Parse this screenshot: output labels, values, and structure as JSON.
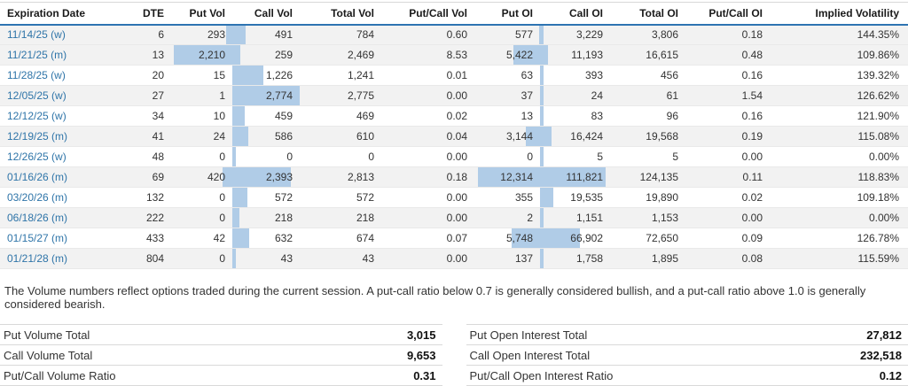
{
  "accent": {
    "bar_color": "#b0cce7",
    "link_color": "#2e74a8",
    "header_underline_color": "#2e74b2"
  },
  "table": {
    "columns": [
      "Expiration Date",
      "DTE",
      "Put Vol",
      "Call Vol",
      "Total Vol",
      "Put/Call Vol",
      "Put OI",
      "Call OI",
      "Total OI",
      "Put/Call OI",
      "Implied Volatility"
    ],
    "rows": [
      {
        "date": "11/14/25 (w)",
        "dte": "6",
        "put_vol": "293",
        "call_vol": "491",
        "total_vol": "784",
        "pc_vol": "0.60",
        "put_oi": "577",
        "call_oi": "3,229",
        "total_oi": "3,806",
        "pc_oi": "0.18",
        "iv": "144.35%"
      },
      {
        "date": "11/21/25 (m)",
        "dte": "13",
        "put_vol": "2,210",
        "call_vol": "259",
        "total_vol": "2,469",
        "pc_vol": "8.53",
        "put_oi": "5,422",
        "call_oi": "11,193",
        "total_oi": "16,615",
        "pc_oi": "0.48",
        "iv": "109.86%"
      },
      {
        "date": "11/28/25 (w)",
        "dte": "20",
        "put_vol": "15",
        "call_vol": "1,226",
        "total_vol": "1,241",
        "pc_vol": "0.01",
        "put_oi": "63",
        "call_oi": "393",
        "total_oi": "456",
        "pc_oi": "0.16",
        "iv": "139.32%"
      },
      {
        "date": "12/05/25 (w)",
        "dte": "27",
        "put_vol": "1",
        "call_vol": "2,774",
        "total_vol": "2,775",
        "pc_vol": "0.00",
        "put_oi": "37",
        "call_oi": "24",
        "total_oi": "61",
        "pc_oi": "1.54",
        "iv": "126.62%"
      },
      {
        "date": "12/12/25 (w)",
        "dte": "34",
        "put_vol": "10",
        "call_vol": "459",
        "total_vol": "469",
        "pc_vol": "0.02",
        "put_oi": "13",
        "call_oi": "83",
        "total_oi": "96",
        "pc_oi": "0.16",
        "iv": "121.90%"
      },
      {
        "date": "12/19/25 (m)",
        "dte": "41",
        "put_vol": "24",
        "call_vol": "586",
        "total_vol": "610",
        "pc_vol": "0.04",
        "put_oi": "3,144",
        "call_oi": "16,424",
        "total_oi": "19,568",
        "pc_oi": "0.19",
        "iv": "115.08%"
      },
      {
        "date": "12/26/25 (w)",
        "dte": "48",
        "put_vol": "0",
        "call_vol": "0",
        "total_vol": "0",
        "pc_vol": "0.00",
        "put_oi": "0",
        "call_oi": "5",
        "total_oi": "5",
        "pc_oi": "0.00",
        "iv": "0.00%"
      },
      {
        "date": "01/16/26 (m)",
        "dte": "69",
        "put_vol": "420",
        "call_vol": "2,393",
        "total_vol": "2,813",
        "pc_vol": "0.18",
        "put_oi": "12,314",
        "call_oi": "111,821",
        "total_oi": "124,135",
        "pc_oi": "0.11",
        "iv": "118.83%"
      },
      {
        "date": "03/20/26 (m)",
        "dte": "132",
        "put_vol": "0",
        "call_vol": "572",
        "total_vol": "572",
        "pc_vol": "0.00",
        "put_oi": "355",
        "call_oi": "19,535",
        "total_oi": "19,890",
        "pc_oi": "0.02",
        "iv": "109.18%"
      },
      {
        "date": "06/18/26 (m)",
        "dte": "222",
        "put_vol": "0",
        "call_vol": "218",
        "total_vol": "218",
        "pc_vol": "0.00",
        "put_oi": "2",
        "call_oi": "1,151",
        "total_oi": "1,153",
        "pc_oi": "0.00",
        "iv": "0.00%"
      },
      {
        "date": "01/15/27 (m)",
        "dte": "433",
        "put_vol": "42",
        "call_vol": "632",
        "total_vol": "674",
        "pc_vol": "0.07",
        "put_oi": "5,748",
        "call_oi": "66,902",
        "total_oi": "72,650",
        "pc_oi": "0.09",
        "iv": "126.78%"
      },
      {
        "date": "01/21/28 (m)",
        "dte": "804",
        "put_vol": "0",
        "call_vol": "43",
        "total_vol": "43",
        "pc_vol": "0.00",
        "put_oi": "137",
        "call_oi": "1,758",
        "total_oi": "1,895",
        "pc_oi": "0.08",
        "iv": "115.59%"
      }
    ]
  },
  "note": "The Volume numbers reflect options traded during the current session. A put-call ratio below 0.7 is generally considered bullish, and a put-call ratio above 1.0 is generally considered bearish.",
  "totals": {
    "volume": {
      "rows": [
        {
          "label": "Put Volume Total",
          "value": "3,015"
        },
        {
          "label": "Call Volume Total",
          "value": "9,653"
        },
        {
          "label": "Put/Call Volume Ratio",
          "value": "0.31"
        }
      ]
    },
    "open_interest": {
      "rows": [
        {
          "label": "Put Open Interest Total",
          "value": "27,812"
        },
        {
          "label": "Call Open Interest Total",
          "value": "232,518"
        },
        {
          "label": "Put/Call Open Interest Ratio",
          "value": "0.12"
        }
      ]
    }
  }
}
